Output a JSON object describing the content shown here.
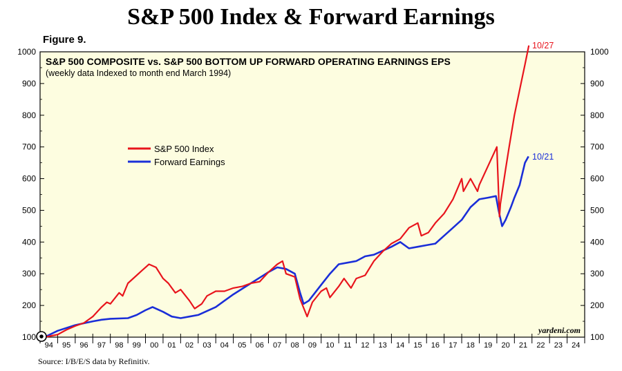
{
  "header": {
    "title": "S&P 500 Index & Forward Earnings",
    "figure_label": "Figure 9.",
    "source": "Source: I/B/E/S data by Refinitiv."
  },
  "colors": {
    "background": "#fdfde0",
    "sp500": "#e8141c",
    "earnings": "#1a2ed8",
    "sp500_label": "#e8141c",
    "earnings_label": "#1a2ed8"
  },
  "chart_data": {
    "type": "line",
    "title": "S&P 500 COMPOSITE vs. S&P 500 BOTTOM UP FORWARD OPERATING EARNINGS EPS",
    "subtitle": "(weekly data Indexed to month end March 1994)",
    "watermark": "yardeni.com",
    "xlabel": "",
    "ylabel": "",
    "xlim": [
      1994,
      2025
    ],
    "ylim": [
      100,
      1000
    ],
    "y_ticks": [
      100,
      200,
      300,
      400,
      500,
      600,
      700,
      800,
      900,
      1000
    ],
    "x_tick_labels": [
      "94",
      "95",
      "96",
      "97",
      "98",
      "99",
      "00",
      "01",
      "02",
      "03",
      "04",
      "05",
      "06",
      "07",
      "08",
      "09",
      "10",
      "11",
      "12",
      "13",
      "14",
      "15",
      "16",
      "17",
      "18",
      "19",
      "20",
      "21",
      "22",
      "23",
      "24"
    ],
    "legend": {
      "position": "upper-left",
      "entries": [
        "S&P 500 Index",
        "Forward Earnings"
      ]
    },
    "series": [
      {
        "name": "S&P 500 Index",
        "end_label": "10/27",
        "x": [
          1994.25,
          1995.0,
          1995.5,
          1996.0,
          1996.5,
          1997.0,
          1997.5,
          1997.8,
          1998.0,
          1998.5,
          1998.7,
          1999.0,
          1999.5,
          1999.8,
          2000.2,
          2000.6,
          2001.0,
          2001.3,
          2001.7,
          2002.0,
          2002.5,
          2002.8,
          2003.2,
          2003.5,
          2004.0,
          2004.5,
          2005.0,
          2005.5,
          2006.0,
          2006.5,
          2007.0,
          2007.5,
          2007.8,
          2008.0,
          2008.5,
          2008.8,
          2009.2,
          2009.5,
          2010.0,
          2010.3,
          2010.5,
          2011.0,
          2011.3,
          2011.7,
          2012.0,
          2012.5,
          2013.0,
          2013.5,
          2014.0,
          2014.5,
          2015.0,
          2015.5,
          2015.7,
          2016.1,
          2016.5,
          2017.0,
          2017.5,
          2018.0,
          2018.1,
          2018.5,
          2018.9,
          2019.0,
          2019.5,
          2020.0,
          2020.15,
          2020.2,
          2020.5,
          2020.7,
          2021.0,
          2021.3,
          2021.6,
          2021.82
        ],
        "values": [
          100,
          108,
          123,
          135,
          145,
          165,
          195,
          210,
          205,
          240,
          230,
          270,
          295,
          310,
          330,
          320,
          285,
          270,
          240,
          250,
          215,
          190,
          205,
          230,
          245,
          245,
          255,
          260,
          270,
          275,
          305,
          330,
          340,
          300,
          290,
          220,
          165,
          210,
          245,
          255,
          225,
          260,
          285,
          255,
          285,
          295,
          340,
          370,
          395,
          410,
          445,
          460,
          420,
          430,
          460,
          490,
          535,
          600,
          560,
          600,
          560,
          580,
          640,
          700,
          480,
          520,
          630,
          700,
          800,
          880,
          960,
          1020
        ]
      },
      {
        "name": "Forward Earnings",
        "end_label": "10/21",
        "x": [
          1994.25,
          1995.0,
          1996.0,
          1997.0,
          1997.5,
          1998.0,
          1999.0,
          1999.5,
          2000.0,
          2000.4,
          2001.0,
          2001.5,
          2002.0,
          2002.5,
          2003.0,
          2004.0,
          2004.5,
          2005.0,
          2006.0,
          2007.0,
          2007.5,
          2008.0,
          2008.5,
          2008.8,
          2009.0,
          2009.3,
          2010.0,
          2010.5,
          2011.0,
          2011.5,
          2012.0,
          2012.5,
          2013.0,
          2014.0,
          2014.5,
          2015.0,
          2015.5,
          2016.0,
          2016.5,
          2017.0,
          2017.5,
          2018.0,
          2018.5,
          2019.0,
          2019.5,
          2019.95,
          2020.1,
          2020.3,
          2020.5,
          2020.8,
          2021.0,
          2021.3,
          2021.6,
          2021.8
        ],
        "values": [
          100,
          120,
          138,
          150,
          155,
          158,
          160,
          170,
          185,
          195,
          180,
          165,
          160,
          165,
          170,
          195,
          215,
          235,
          270,
          305,
          320,
          315,
          300,
          240,
          205,
          215,
          265,
          300,
          330,
          335,
          340,
          355,
          360,
          385,
          400,
          380,
          385,
          390,
          395,
          420,
          445,
          470,
          510,
          535,
          540,
          545,
          500,
          450,
          470,
          510,
          540,
          580,
          650,
          670
        ]
      }
    ]
  }
}
